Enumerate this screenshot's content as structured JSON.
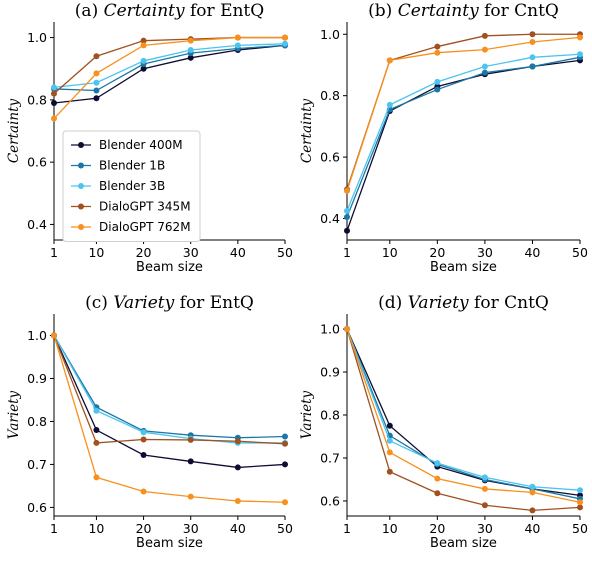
{
  "chart_data": [
    {
      "type": "line",
      "title": "(a) Certainty for EntQ",
      "title_parts": {
        "prefix": "(a) ",
        "emph": "Certainty",
        "mid": " for ",
        "task": "EntQ"
      },
      "xlabel": "Beam size",
      "ylabel": "Certainty",
      "x": [
        1,
        10,
        20,
        30,
        40,
        50
      ],
      "xlim": [
        1,
        50
      ],
      "ylim": [
        0.35,
        1.05
      ],
      "yticks": [
        0.4,
        0.6,
        0.8,
        1.0
      ],
      "legend": "center-left",
      "series": [
        {
          "name": "Blender 400M",
          "color": "#0d0c33",
          "values": [
            0.79,
            0.805,
            0.9,
            0.935,
            0.96,
            0.975
          ]
        },
        {
          "name": "Blender 1B",
          "color": "#1b78a6",
          "values": [
            0.835,
            0.83,
            0.915,
            0.95,
            0.965,
            0.975
          ]
        },
        {
          "name": "Blender 3B",
          "color": "#4cc4ef",
          "values": [
            0.84,
            0.855,
            0.925,
            0.96,
            0.975,
            0.98
          ]
        },
        {
          "name": "DialoGPT 345M",
          "color": "#a0511f",
          "values": [
            0.82,
            0.94,
            0.99,
            0.995,
            1.0,
            1.0
          ]
        },
        {
          "name": "DialoGPT 762M",
          "color": "#f7901e",
          "values": [
            0.74,
            0.885,
            0.975,
            0.99,
            1.0,
            1.0
          ]
        }
      ]
    },
    {
      "type": "line",
      "title": "(b) Certainty for CntQ",
      "title_parts": {
        "prefix": "(b) ",
        "emph": "Certainty",
        "mid": " for ",
        "task": "CntQ"
      },
      "xlabel": "Beam size",
      "ylabel": "Certainty",
      "x": [
        1,
        10,
        20,
        30,
        40,
        50
      ],
      "xlim": [
        1,
        50
      ],
      "ylim": [
        0.33,
        1.04
      ],
      "yticks": [
        0.4,
        0.6,
        0.8,
        1.0
      ],
      "series": [
        {
          "name": "Blender 400M",
          "color": "#0d0c33",
          "values": [
            0.36,
            0.75,
            0.83,
            0.87,
            0.895,
            0.915
          ]
        },
        {
          "name": "Blender 1B",
          "color": "#1b78a6",
          "values": [
            0.405,
            0.755,
            0.82,
            0.875,
            0.895,
            0.925
          ]
        },
        {
          "name": "Blender 3B",
          "color": "#4cc4ef",
          "values": [
            0.425,
            0.77,
            0.845,
            0.895,
            0.925,
            0.935
          ]
        },
        {
          "name": "DialoGPT 345M",
          "color": "#a0511f",
          "values": [
            0.495,
            0.915,
            0.96,
            0.995,
            1.0,
            1.0
          ]
        },
        {
          "name": "DialoGPT 762M",
          "color": "#f7901e",
          "values": [
            0.49,
            0.915,
            0.94,
            0.95,
            0.975,
            0.99
          ]
        }
      ]
    },
    {
      "type": "line",
      "title": "(c) Variety for EntQ",
      "title_parts": {
        "prefix": "(c) ",
        "emph": "Variety",
        "mid": " for ",
        "task": "EntQ"
      },
      "xlabel": "Beam size",
      "ylabel": "Variety",
      "x": [
        1,
        10,
        20,
        30,
        40,
        50
      ],
      "xlim": [
        1,
        50
      ],
      "ylim": [
        0.58,
        1.05
      ],
      "yticks": [
        0.6,
        0.7,
        0.8,
        0.9,
        1.0
      ],
      "series": [
        {
          "name": "Blender 400M",
          "color": "#0d0c33",
          "values": [
            1.0,
            0.78,
            0.722,
            0.707,
            0.693,
            0.7
          ]
        },
        {
          "name": "Blender 1B",
          "color": "#1b78a6",
          "values": [
            1.0,
            0.833,
            0.778,
            0.768,
            0.762,
            0.765
          ]
        },
        {
          "name": "Blender 3B",
          "color": "#4cc4ef",
          "values": [
            1.0,
            0.825,
            0.775,
            0.76,
            0.75,
            0.75
          ]
        },
        {
          "name": "DialoGPT 345M",
          "color": "#a0511f",
          "values": [
            1.0,
            0.75,
            0.758,
            0.757,
            0.754,
            0.748
          ]
        },
        {
          "name": "DialoGPT 762M",
          "color": "#f7901e",
          "values": [
            1.0,
            0.67,
            0.637,
            0.625,
            0.615,
            0.612
          ]
        }
      ]
    },
    {
      "type": "line",
      "title": "(d) Variety for CntQ",
      "title_parts": {
        "prefix": "(d) ",
        "emph": "Variety",
        "mid": " for ",
        "task": "CntQ"
      },
      "xlabel": "Beam size",
      "ylabel": "Variety",
      "x": [
        1,
        10,
        20,
        30,
        40,
        50
      ],
      "xlim": [
        1,
        50
      ],
      "ylim": [
        0.565,
        1.035
      ],
      "yticks": [
        0.6,
        0.7,
        0.8,
        0.9,
        1.0
      ],
      "series": [
        {
          "name": "Blender 400M",
          "color": "#0d0c33",
          "values": [
            1.0,
            0.775,
            0.68,
            0.648,
            0.628,
            0.613
          ]
        },
        {
          "name": "Blender 1B",
          "color": "#1b78a6",
          "values": [
            1.0,
            0.752,
            0.685,
            0.65,
            0.628,
            0.605
          ]
        },
        {
          "name": "Blender 3B",
          "color": "#4cc4ef",
          "values": [
            1.0,
            0.74,
            0.688,
            0.655,
            0.633,
            0.625
          ]
        },
        {
          "name": "DialoGPT 345M",
          "color": "#a0511f",
          "values": [
            1.0,
            0.668,
            0.618,
            0.59,
            0.578,
            0.585
          ]
        },
        {
          "name": "DialoGPT 762M",
          "color": "#f7901e",
          "values": [
            1.0,
            0.713,
            0.652,
            0.628,
            0.62,
            0.597
          ]
        }
      ]
    }
  ]
}
